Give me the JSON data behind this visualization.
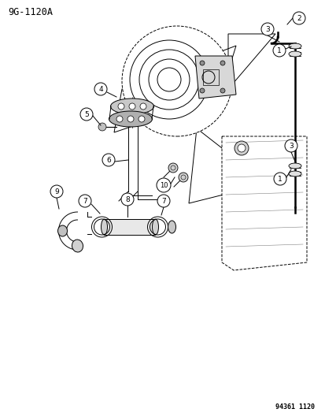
{
  "title": "9G-1120A",
  "footer": "94361 1120",
  "bg_color": "#ffffff",
  "fg_color": "#000000",
  "fig_width": 4.14,
  "fig_height": 5.33,
  "dpi": 100
}
